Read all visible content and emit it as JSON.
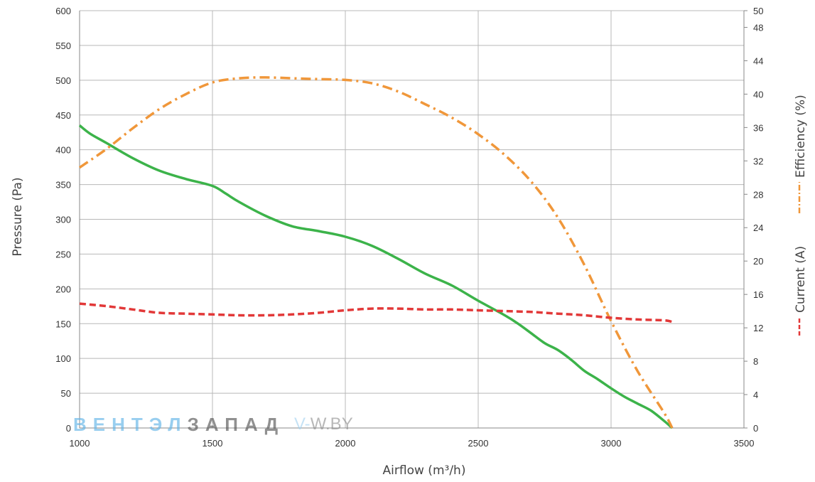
{
  "chart_data": {
    "type": "line",
    "xlabel": "Airflow (m³/h)",
    "xlim": [
      1000,
      3500
    ],
    "xticks": [
      1000,
      1500,
      2000,
      2500,
      3000,
      3500
    ],
    "ylabel_left": "Pressure (Pa)",
    "ylim_left": [
      0,
      600
    ],
    "yticks_left": [
      0,
      50,
      100,
      150,
      200,
      250,
      300,
      350,
      400,
      450,
      500,
      550,
      600
    ],
    "ylabel_right": [
      "Efficiency (%)",
      "Current (A)"
    ],
    "ylim_right": [
      0,
      50
    ],
    "yticks_right": [
      0,
      4,
      8,
      12,
      16,
      20,
      24,
      28,
      32,
      36,
      40,
      44,
      48,
      50
    ],
    "grid": true,
    "series": [
      {
        "axis": "left",
        "color": "#3cb34a",
        "style": "solid",
        "x": [
          1000,
          1040,
          1100,
          1200,
          1300,
          1400,
          1500,
          1550,
          1600,
          1700,
          1800,
          1900,
          2000,
          2100,
          2200,
          2300,
          2400,
          2500,
          2600,
          2650,
          2700,
          2750,
          2800,
          2850,
          2900,
          2950,
          3000,
          3050,
          3100,
          3150,
          3200,
          3230
        ],
        "values": [
          435,
          423,
          410,
          388,
          370,
          358,
          348,
          337,
          325,
          305,
          290,
          283,
          275,
          262,
          243,
          222,
          205,
          183,
          162,
          150,
          136,
          122,
          112,
          98,
          82,
          70,
          57,
          45,
          35,
          25,
          10,
          0
        ]
      },
      {
        "axis": "right",
        "color": "#f0973a",
        "style": "dashdot",
        "x": [
          1000,
          1100,
          1200,
          1300,
          1400,
          1500,
          1600,
          1700,
          1800,
          1900,
          2000,
          2100,
          2200,
          2300,
          2400,
          2500,
          2600,
          2700,
          2800,
          2900,
          3000,
          3100,
          3200,
          3230
        ],
        "values": [
          31.2,
          33.4,
          35.9,
          38.2,
          40.0,
          41.4,
          41.9,
          42.0,
          41.9,
          41.8,
          41.7,
          41.3,
          40.3,
          38.8,
          37.2,
          35.2,
          32.7,
          29.5,
          25.2,
          19.5,
          12.8,
          6.8,
          1.8,
          0
        ]
      },
      {
        "axis": "right",
        "color": "#e23838",
        "style": "dashed",
        "x": [
          1000,
          1100,
          1200,
          1300,
          1400,
          1500,
          1600,
          1700,
          1800,
          1900,
          2000,
          2100,
          2200,
          2300,
          2400,
          2500,
          2600,
          2700,
          2800,
          2900,
          3000,
          3100,
          3200,
          3230
        ],
        "values": [
          14.9,
          14.6,
          14.2,
          13.8,
          13.7,
          13.6,
          13.5,
          13.5,
          13.6,
          13.8,
          14.1,
          14.3,
          14.3,
          14.2,
          14.2,
          14.1,
          14.0,
          13.9,
          13.7,
          13.5,
          13.2,
          13.0,
          12.9,
          12.7
        ]
      }
    ]
  },
  "watermark": {
    "part1": "ВЕНТЭЛ",
    "part2": "ЗАПАД",
    "site_prefix": "V-",
    "site_rest": "W.BY",
    "color_blue": "#62b4e8",
    "color_dark": "#555555",
    "color_site_blue": "#9fcff0",
    "color_site_grey": "#8a8a8a"
  }
}
